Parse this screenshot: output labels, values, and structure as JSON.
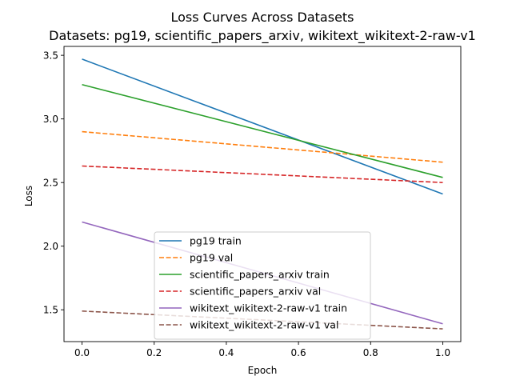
{
  "chart_data": {
    "type": "line",
    "title": "Loss Curves Across Datasets",
    "subtitle": "Datasets: pg19, scientific_papers_arxiv, wikitext_wikitext-2-raw-v1",
    "xlabel": "Epoch",
    "ylabel": "Loss",
    "xlim": [
      -0.05,
      1.05
    ],
    "ylim": [
      1.25,
      3.57
    ],
    "xticks": [
      0.0,
      0.2,
      0.4,
      0.6,
      0.8,
      1.0
    ],
    "xtick_labels": [
      "0.0",
      "0.2",
      "0.4",
      "0.6",
      "0.8",
      "1.0"
    ],
    "yticks": [
      1.5,
      2.0,
      2.5,
      3.0,
      3.5
    ],
    "ytick_labels": [
      "1.5",
      "2.0",
      "2.5",
      "3.0",
      "3.5"
    ],
    "grid": false,
    "legend_placement": "lower-center",
    "series": [
      {
        "name": "pg19 train",
        "x": [
          0.0,
          1.0
        ],
        "y": [
          3.47,
          2.41
        ],
        "color": "#1f77b4",
        "dash": "solid"
      },
      {
        "name": "pg19 val",
        "x": [
          0.0,
          1.0
        ],
        "y": [
          2.9,
          2.66
        ],
        "color": "#ff7f0e",
        "dash": "dashed"
      },
      {
        "name": "scientific_papers_arxiv train",
        "x": [
          0.0,
          1.0
        ],
        "y": [
          3.27,
          2.54
        ],
        "color": "#2ca02c",
        "dash": "solid"
      },
      {
        "name": "scientific_papers_arxiv val",
        "x": [
          0.0,
          1.0
        ],
        "y": [
          2.63,
          2.5
        ],
        "color": "#d62728",
        "dash": "dashed"
      },
      {
        "name": "wikitext_wikitext-2-raw-v1 train",
        "x": [
          0.0,
          1.0
        ],
        "y": [
          2.19,
          1.39
        ],
        "color": "#9467bd",
        "dash": "solid"
      },
      {
        "name": "wikitext_wikitext-2-raw-v1 val",
        "x": [
          0.0,
          1.0
        ],
        "y": [
          1.49,
          1.35
        ],
        "color": "#8c564b",
        "dash": "dashed"
      }
    ]
  }
}
